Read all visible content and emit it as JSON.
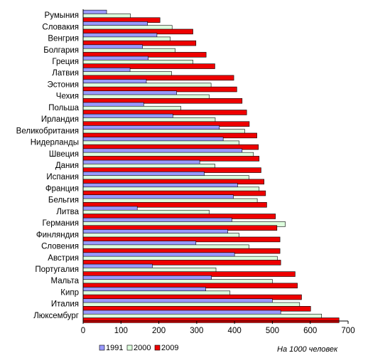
{
  "chart_data": {
    "type": "bar",
    "orientation": "horizontal",
    "categories": [
      "Румыния",
      "Словакия",
      "Венгрия",
      "Болгария",
      "Греция",
      "Латвия",
      "Эстония",
      "Чехия",
      "Польша",
      "Ирландия",
      "Великобритания",
      "Нидерланды",
      "Швеция",
      "Дания",
      "Испания",
      "Франция",
      "Бельгия",
      "Литва",
      "Германия",
      "Финляндия",
      "Словения",
      "Австрия",
      "Португалия",
      "Мальта",
      "Кипр",
      "Италия",
      "Люксембург"
    ],
    "series": [
      {
        "name": "1991",
        "color": "#9999ff",
        "values": [
          62,
          170,
          195,
          157,
          172,
          124,
          167,
          247,
          160,
          237,
          360,
          370,
          420,
          308,
          320,
          408,
          397,
          143,
          393,
          382,
          298,
          400,
          183,
          339,
          324,
          500,
          522
        ]
      },
      {
        "name": "2000",
        "color": "#ddffdd",
        "values": [
          125,
          235,
          230,
          243,
          290,
          234,
          338,
          333,
          258,
          349,
          427,
          412,
          450,
          348,
          438,
          465,
          460,
          333,
          534,
          412,
          438,
          513,
          351,
          500,
          388,
          572,
          630
        ]
      },
      {
        "name": "2009",
        "color": "#ee0000",
        "values": [
          203,
          290,
          298,
          325,
          348,
          398,
          406,
          420,
          432,
          439,
          459,
          463,
          465,
          470,
          478,
          482,
          485,
          508,
          512,
          520,
          520,
          522,
          560,
          566,
          577,
          601,
          676
        ]
      }
    ],
    "x_ticks": [
      "0",
      "100",
      "200",
      "300",
      "400",
      "500",
      "600",
      "700"
    ],
    "xlim": [
      0,
      700
    ],
    "grid": false,
    "legend_position": "bottom-left",
    "note": "На 1000 человек"
  }
}
